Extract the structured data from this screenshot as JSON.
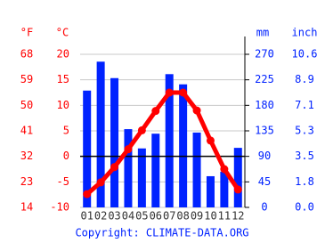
{
  "chart_data": {
    "type": "climate",
    "categories": [
      "01",
      "02",
      "03",
      "04",
      "05",
      "06",
      "07",
      "08",
      "09",
      "10",
      "11",
      "12"
    ],
    "series": [
      {
        "type": "bar",
        "axis": "y2",
        "color": "#0022ff",
        "values": [
          206,
          257,
          228,
          138,
          104,
          130,
          235,
          217,
          132,
          55,
          63,
          105
        ]
      },
      {
        "type": "line",
        "axis": "y",
        "color": "#ff0000",
        "values": [
          -7.4,
          -5.1,
          -2.1,
          1.4,
          5.1,
          8.9,
          12.5,
          12.5,
          9.0,
          3.1,
          -2.5,
          -6.5
        ]
      }
    ],
    "ylabel": "°C",
    "yflabel": "°F",
    "y2label": "mm",
    "y2inchlabel": "inch",
    "ylim": [
      -10,
      20
    ],
    "yticks": [
      -10,
      -5,
      0,
      5,
      10,
      15,
      20
    ],
    "yfticks": [
      14,
      23,
      32,
      41,
      50,
      59,
      68
    ],
    "y2lim": [
      0,
      270
    ],
    "y2ticks": [
      0,
      45,
      90,
      135,
      180,
      225,
      270
    ],
    "y2inchticks": [
      {
        "value": 0,
        "label": "0.0"
      },
      1.8,
      3.5,
      5.3,
      7.1,
      8.9,
      10.6
    ],
    "grid": true,
    "copyright": "Copyright: CLIMATE-DATA.ORG"
  }
}
